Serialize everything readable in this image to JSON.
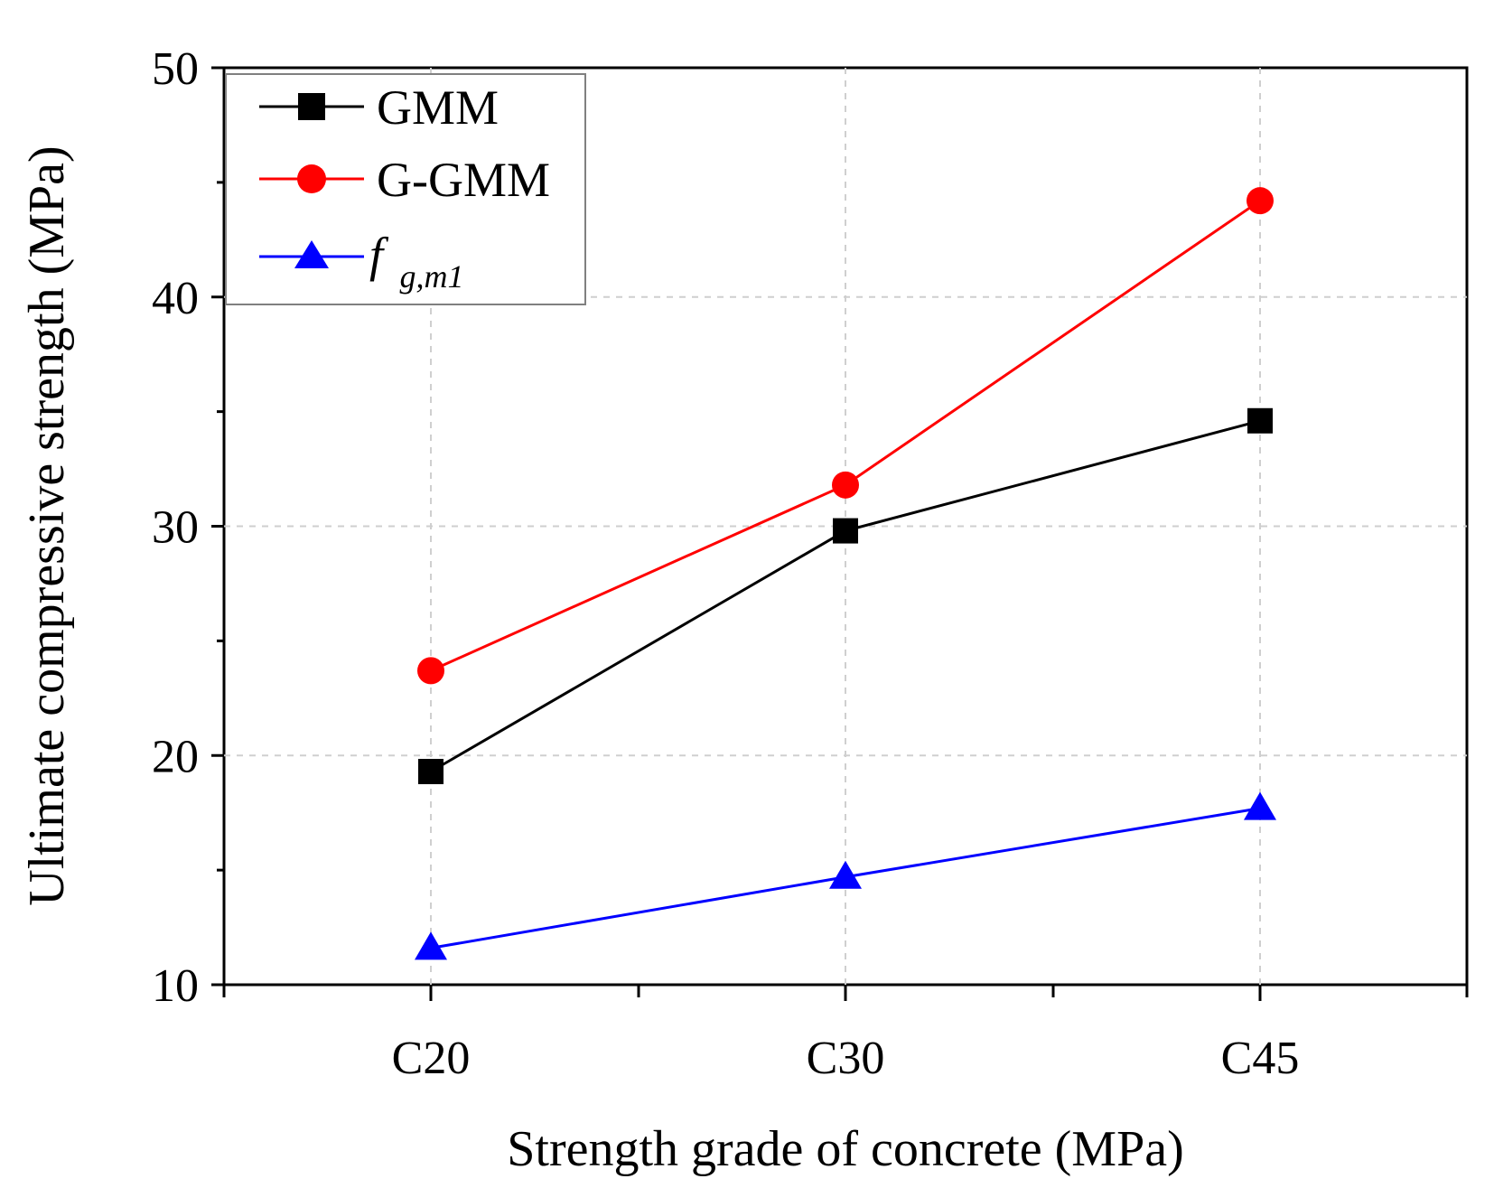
{
  "chart_data": {
    "type": "line",
    "title": "",
    "xlabel": "Strength grade of concrete (MPa)",
    "ylabel": "Ultimate compressive strength (MPa)",
    "categories": [
      "C20",
      "C30",
      "C45"
    ],
    "ylim": [
      10,
      50
    ],
    "y_ticks": [
      10,
      20,
      30,
      40,
      50
    ],
    "y_tick_labels": [
      "10",
      "20",
      "30",
      "40",
      "50"
    ],
    "grid": true,
    "legend": {
      "position": "top-left"
    },
    "series": [
      {
        "name": "GMM",
        "legend_parts": {
          "main": "GMM",
          "sub": ""
        },
        "values": [
          19.3,
          29.8,
          34.6
        ],
        "color": "#000000",
        "marker": "square"
      },
      {
        "name": "G-GMM",
        "legend_parts": {
          "main": "G-GMM",
          "sub": ""
        },
        "values": [
          23.7,
          31.8,
          44.2
        ],
        "color": "#ff0000",
        "marker": "circle"
      },
      {
        "name": "fg,m1",
        "legend_parts": {
          "main": "f",
          "sub": "g,m1"
        },
        "values": [
          11.6,
          14.7,
          17.7
        ],
        "color": "#0000ff",
        "marker": "triangle"
      }
    ]
  }
}
